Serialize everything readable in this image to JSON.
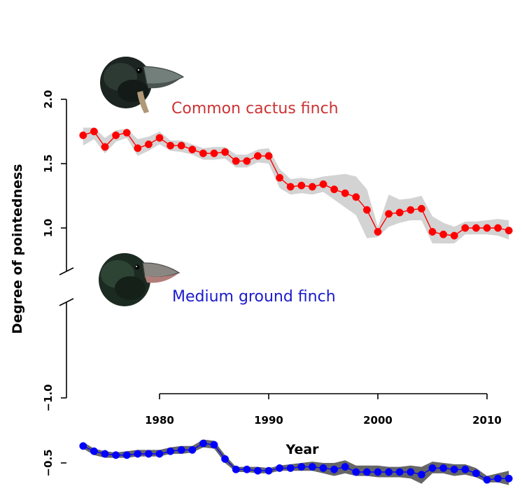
{
  "chart_data": {
    "type": "line",
    "xlabel": "Year",
    "ylabel": "Degree of pointedness",
    "x_ticks": [
      "1980",
      "1990",
      "2000",
      "2010"
    ],
    "x_tick_values": [
      1980,
      1990,
      2000,
      2010
    ],
    "upper_panel": {
      "y_ticks": [
        "1.0",
        "1.5",
        "2.0"
      ],
      "y_tick_values": [
        1.0,
        1.5,
        2.0
      ]
    },
    "lower_panel": {
      "y_ticks": [
        "−1.0",
        "−0.5"
      ],
      "y_tick_values": [
        -1.0,
        -0.5
      ]
    },
    "broken_y_axis": true,
    "grid": false,
    "x": [
      1973,
      1974,
      1975,
      1976,
      1977,
      1978,
      1979,
      1980,
      1981,
      1982,
      1983,
      1984,
      1985,
      1986,
      1987,
      1988,
      1989,
      1990,
      1991,
      1992,
      1993,
      1994,
      1995,
      1996,
      1997,
      1998,
      1999,
      2000,
      2001,
      2002,
      2003,
      2004,
      2005,
      2006,
      2007,
      2008,
      2009,
      2010,
      2011,
      2012
    ],
    "series": [
      {
        "name": "Common cactus finch",
        "panel": "upper",
        "color": "#ff0000",
        "band_color": "#d3d3d3",
        "values": [
          1.72,
          1.75,
          1.63,
          1.72,
          1.74,
          1.62,
          1.65,
          1.7,
          1.64,
          1.64,
          1.61,
          1.58,
          1.58,
          1.59,
          1.52,
          1.52,
          1.56,
          1.56,
          1.39,
          1.32,
          1.33,
          1.32,
          1.34,
          1.3,
          1.27,
          1.24,
          1.14,
          0.97,
          1.11,
          1.12,
          1.14,
          1.15,
          0.97,
          0.95,
          0.94,
          1.0,
          1.0,
          1.0,
          1.0,
          0.98
        ],
        "band_upper": [
          1.78,
          1.78,
          1.7,
          1.76,
          1.77,
          1.69,
          1.71,
          1.75,
          1.68,
          1.68,
          1.65,
          1.62,
          1.63,
          1.63,
          1.57,
          1.57,
          1.61,
          1.62,
          1.46,
          1.38,
          1.39,
          1.38,
          1.4,
          1.41,
          1.42,
          1.4,
          1.3,
          1.01,
          1.26,
          1.22,
          1.23,
          1.25,
          1.09,
          1.04,
          1.01,
          1.05,
          1.05,
          1.06,
          1.07,
          1.06
        ],
        "band_lower": [
          1.64,
          1.69,
          1.58,
          1.67,
          1.7,
          1.56,
          1.6,
          1.65,
          1.6,
          1.59,
          1.57,
          1.53,
          1.53,
          1.54,
          1.47,
          1.47,
          1.51,
          1.5,
          1.31,
          1.26,
          1.27,
          1.26,
          1.28,
          1.22,
          1.16,
          1.1,
          0.92,
          0.93,
          1.01,
          1.04,
          1.06,
          1.06,
          0.88,
          0.88,
          0.88,
          0.95,
          0.95,
          0.95,
          0.94,
          0.91
        ]
      },
      {
        "name": "Medium ground finch",
        "panel": "lower",
        "color": "#0000ff",
        "band_color": "#666666",
        "values": [
          -0.63,
          -0.59,
          -0.57,
          -0.56,
          -0.56,
          -0.57,
          -0.57,
          -0.57,
          -0.59,
          -0.6,
          -0.6,
          -0.65,
          -0.64,
          -0.53,
          -0.45,
          -0.45,
          -0.44,
          -0.44,
          -0.46,
          -0.46,
          -0.47,
          -0.47,
          -0.46,
          -0.45,
          -0.47,
          -0.43,
          -0.43,
          -0.43,
          -0.43,
          -0.43,
          -0.43,
          -0.41,
          -0.46,
          -0.46,
          -0.45,
          -0.45,
          -0.42,
          -0.37,
          -0.38,
          -0.38
        ],
        "band_upper": [
          -0.61,
          -0.56,
          -0.54,
          -0.54,
          -0.54,
          -0.55,
          -0.55,
          -0.55,
          -0.57,
          -0.57,
          -0.58,
          -0.62,
          -0.61,
          -0.5,
          -0.43,
          -0.43,
          -0.42,
          -0.42,
          -0.44,
          -0.44,
          -0.44,
          -0.44,
          -0.42,
          -0.4,
          -0.42,
          -0.4,
          -0.4,
          -0.39,
          -0.39,
          -0.39,
          -0.38,
          -0.34,
          -0.42,
          -0.42,
          -0.4,
          -0.41,
          -0.39,
          -0.35,
          -0.35,
          -0.33
        ],
        "band_lower": [
          -0.66,
          -0.61,
          -0.59,
          -0.58,
          -0.59,
          -0.6,
          -0.6,
          -0.6,
          -0.62,
          -0.63,
          -0.63,
          -0.68,
          -0.67,
          -0.56,
          -0.47,
          -0.47,
          -0.47,
          -0.46,
          -0.48,
          -0.49,
          -0.5,
          -0.51,
          -0.5,
          -0.5,
          -0.52,
          -0.48,
          -0.48,
          -0.48,
          -0.47,
          -0.47,
          -0.48,
          -0.47,
          -0.51,
          -0.5,
          -0.49,
          -0.49,
          -0.46,
          -0.4,
          -0.42,
          -0.44
        ]
      }
    ]
  },
  "annotations": {
    "cactus_icon": "cactus-finch-head",
    "ground_icon": "ground-finch-head"
  }
}
